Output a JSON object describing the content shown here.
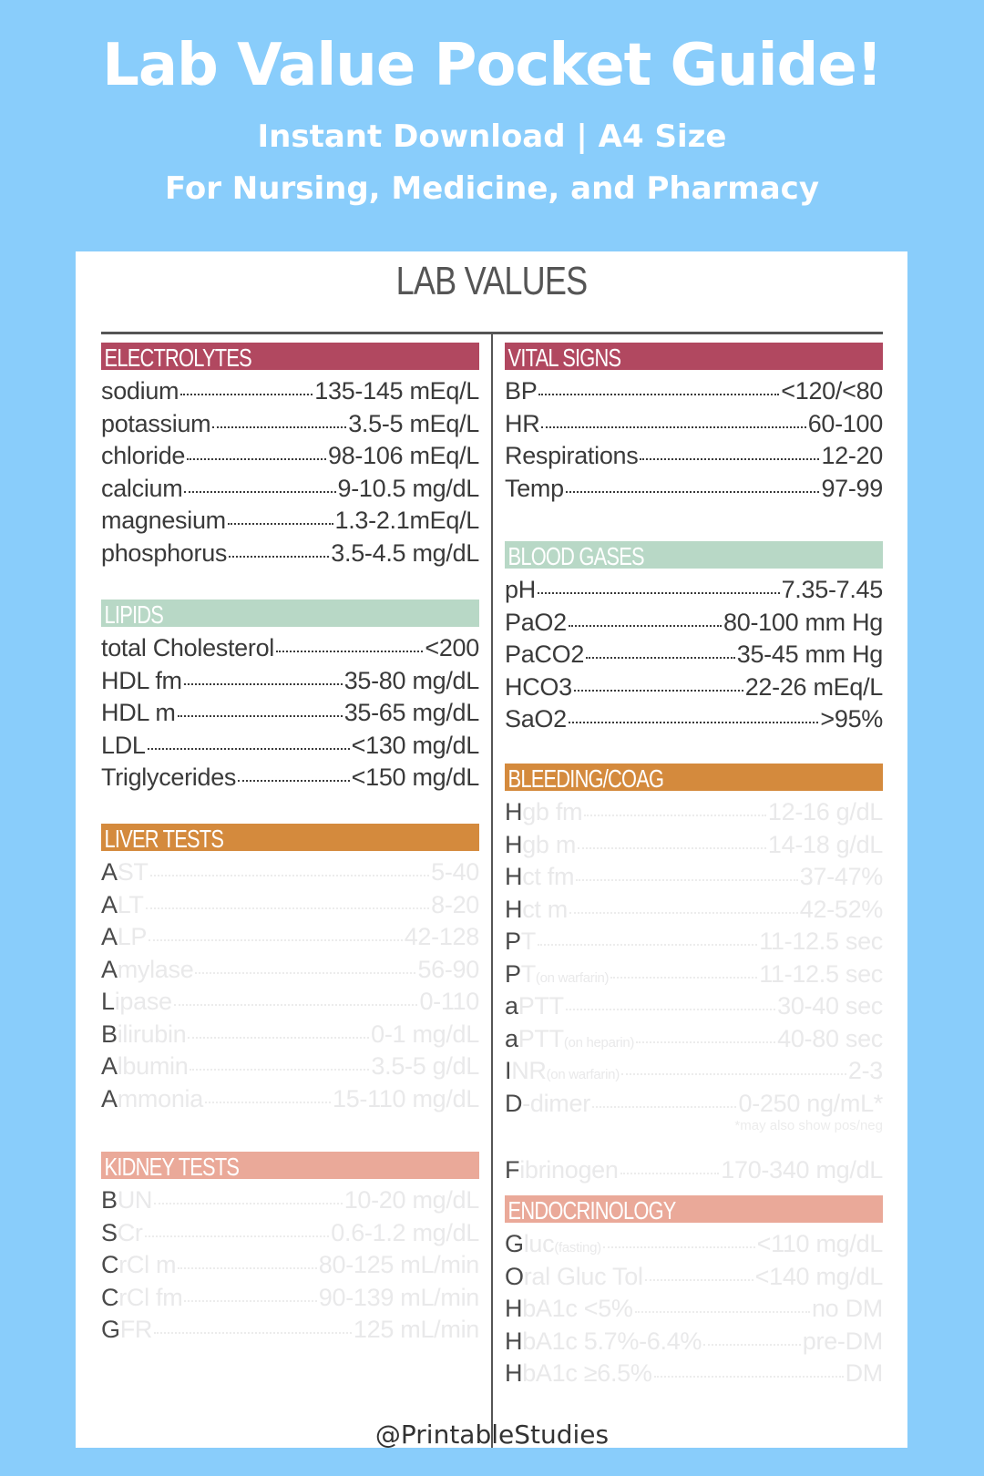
{
  "banner": {
    "title": "Lab Value Pocket Guide!",
    "subtitle_line1": "Instant Download | A4 Size",
    "subtitle_line2": "For Nursing, Medicine, and Pharmacy"
  },
  "card": {
    "title": "LAB VALUES"
  },
  "colors": {
    "background": "#89cdfb",
    "electrolytes": "#b14860",
    "vital_signs": "#b14860",
    "lipids": "#b8d8c6",
    "blood_gases": "#b8d8c6",
    "liver_tests": "#d48a3d",
    "bleeding_coag": "#d48a3d",
    "kidney_tests": "#eaa999",
    "endocrinology": "#eaa999"
  },
  "sections": {
    "electrolytes": {
      "header": "ELECTROLYTES",
      "rows": [
        {
          "label": "sodium",
          "value": "135-145 mEq/L"
        },
        {
          "label": "potassium",
          "value": "3.5-5 mEq/L"
        },
        {
          "label": "chloride",
          "value": "98-106 mEq/L"
        },
        {
          "label": "calcium",
          "value": "9-10.5 mg/dL"
        },
        {
          "label": "magnesium",
          "value": "1.3-2.1mEq/L"
        },
        {
          "label": "phosphorus",
          "value": "3.5-4.5 mg/dL"
        }
      ]
    },
    "lipids": {
      "header": "LIPIDS",
      "rows": [
        {
          "label": "total Cholesterol",
          "value": "<200"
        },
        {
          "label": "HDL fm",
          "value": "35-80 mg/dL"
        },
        {
          "label": "HDL m",
          "value": "35-65 mg/dL"
        },
        {
          "label": "LDL",
          "value": "<130 mg/dL"
        },
        {
          "label": "Triglycerides",
          "value": "<150 mg/dL"
        }
      ]
    },
    "liver_tests": {
      "header": "LIVER TESTS",
      "rows": [
        {
          "label": "AST",
          "value": "5-40"
        },
        {
          "label": "ALT",
          "value": "8-20"
        },
        {
          "label": "ALP",
          "value": "42-128"
        },
        {
          "label": "Amylase",
          "value": "56-90"
        },
        {
          "label": "Lipase",
          "value": "0-110"
        },
        {
          "label": "Bilirubin",
          "value": "0-1 mg/dL"
        },
        {
          "label": "Albumin",
          "value": "3.5-5 g/dL"
        },
        {
          "label": "Ammonia",
          "value": "15-110 mg/dL"
        }
      ]
    },
    "kidney_tests": {
      "header": "KIDNEY TESTS",
      "rows": [
        {
          "label": "BUN",
          "value": "10-20 mg/dL"
        },
        {
          "label": "SCr",
          "value": "0.6-1.2 mg/dL"
        },
        {
          "label": "CrCl m",
          "value": "80-125 mL/min"
        },
        {
          "label": "CrCl fm",
          "value": "90-139 mL/min"
        },
        {
          "label": "GFR",
          "value": "125 mL/min"
        }
      ]
    },
    "vital_signs": {
      "header": "VITAL SIGNS",
      "rows": [
        {
          "label": "BP",
          "value": "<120/<80"
        },
        {
          "label": "HR",
          "value": "60-100"
        },
        {
          "label": "Respirations",
          "value": "12-20"
        },
        {
          "label": "Temp",
          "value": "97-99"
        }
      ]
    },
    "blood_gases": {
      "header": "BLOOD GASES",
      "rows": [
        {
          "label": "pH",
          "value": "7.35-7.45"
        },
        {
          "label": "PaO2",
          "value": "80-100 mm Hg"
        },
        {
          "label": "PaCO2",
          "value": "35-45 mm Hg"
        },
        {
          "label": "HCO3",
          "value": "22-26 mEq/L"
        },
        {
          "label": "SaO2",
          "value": ">95%"
        }
      ]
    },
    "bleeding_coag": {
      "header": "BLEEDING/COAG",
      "rows": [
        {
          "label": "Hgb fm",
          "value": "12-16 g/dL"
        },
        {
          "label": "Hgb m",
          "value": "14-18 g/dL"
        },
        {
          "label": "Hct fm",
          "value": "37-47%"
        },
        {
          "label": "Hct m",
          "value": "42-52%"
        },
        {
          "label": "PT",
          "value": "11-12.5 sec"
        },
        {
          "label": "PT",
          "tag": "(on warfarin)",
          "value": "11-12.5 sec"
        },
        {
          "label": "aPTT",
          "value": "30-40 sec"
        },
        {
          "label": "aPTT",
          "tag": "(on heparin)",
          "value": "40-80 sec"
        },
        {
          "label": "INR",
          "tag": "(on warfarin)",
          "value": "2-3"
        },
        {
          "label": "D-dimer",
          "value": "0-250 ng/mL*"
        }
      ],
      "note": "*may also show pos/neg",
      "extra_rows": [
        {
          "label": "Fibrinogen",
          "value": "170-340 mg/dL"
        }
      ]
    },
    "endocrinology": {
      "header": "ENDOCRINOLOGY",
      "rows": [
        {
          "label": "Gluc",
          "tag": "(fasting)",
          "value": "<110 mg/dL"
        },
        {
          "label": "Oral Gluc Tol",
          "value": "<140 mg/dL"
        },
        {
          "label": "HbA1c <5%",
          "value": "no DM"
        },
        {
          "label": "HbA1c 5.7%-6.4%",
          "value": "pre-DM"
        },
        {
          "label": "HbA1c ≥6.5%",
          "value": "DM"
        }
      ]
    }
  },
  "credit": "@PrintableStudies"
}
